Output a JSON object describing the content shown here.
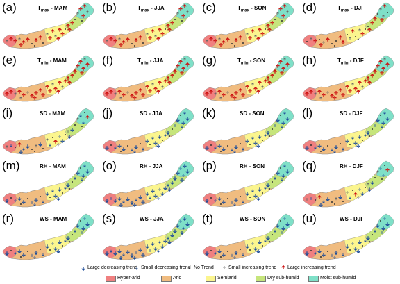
{
  "panels": [
    {
      "label": "(a)",
      "var": "T",
      "sub": "max",
      "season": "MAM",
      "pattern": "up"
    },
    {
      "label": "(b)",
      "var": "T",
      "sub": "max",
      "season": "JJA",
      "pattern": "up"
    },
    {
      "label": "(c)",
      "var": "T",
      "sub": "max",
      "season": "SON",
      "pattern": "up"
    },
    {
      "label": "(d)",
      "var": "T",
      "sub": "max",
      "season": "DJF",
      "pattern": "up-sparse"
    },
    {
      "label": "(e)",
      "var": "T",
      "sub": "min",
      "season": "MAM",
      "pattern": "up-dense"
    },
    {
      "label": "(f)",
      "var": "T",
      "sub": "min",
      "season": "JJA",
      "pattern": "up-dense"
    },
    {
      "label": "(g)",
      "var": "T",
      "sub": "min",
      "season": "SON",
      "pattern": "up-dense"
    },
    {
      "label": "(h)",
      "var": "T",
      "sub": "min",
      "season": "DJF",
      "pattern": "up-dense"
    },
    {
      "label": "(i)",
      "var": "SD",
      "sub": "",
      "season": "MAM",
      "pattern": "mixed"
    },
    {
      "label": "(j)",
      "var": "SD",
      "sub": "",
      "season": "JJA",
      "pattern": "down"
    },
    {
      "label": "(k)",
      "var": "SD",
      "sub": "",
      "season": "SON",
      "pattern": "down"
    },
    {
      "label": "(l)",
      "var": "SD",
      "sub": "",
      "season": "DJF",
      "pattern": "down"
    },
    {
      "label": "(m)",
      "var": "RH",
      "sub": "",
      "season": "MAM",
      "pattern": "down"
    },
    {
      "label": "(o)",
      "var": "RH",
      "sub": "",
      "season": "JJA",
      "pattern": "down-dense"
    },
    {
      "label": "(p)",
      "var": "RH",
      "sub": "",
      "season": "SON",
      "pattern": "down"
    },
    {
      "label": "(q)",
      "var": "RH",
      "sub": "",
      "season": "DJF",
      "pattern": "mixed"
    },
    {
      "label": "(r)",
      "var": "WS",
      "sub": "",
      "season": "MAM",
      "pattern": "down"
    },
    {
      "label": "(s)",
      "var": "WS",
      "sub": "",
      "season": "JJA",
      "pattern": "down-dense"
    },
    {
      "label": "(t)",
      "var": "WS",
      "sub": "",
      "season": "SON",
      "pattern": "down"
    },
    {
      "label": "(u)",
      "var": "WS",
      "sub": "",
      "season": "DJF",
      "pattern": "down"
    }
  ],
  "legend": {
    "trends": [
      {
        "label": "Large decreasing trend",
        "symbol": "large-down",
        "color": "#1f4e99"
      },
      {
        "label": "Small decreasing trend",
        "symbol": "small-down",
        "color": "#1f4e99"
      },
      {
        "label": "No Trend",
        "symbol": "dot",
        "color": "#333333"
      },
      {
        "label": "Small increasing trend",
        "symbol": "small-up",
        "color": "#555555"
      },
      {
        "label": "Large increasing trend",
        "symbol": "large-up",
        "color": "#cc1111"
      }
    ],
    "zones": [
      {
        "label": "Hyper-arid",
        "color": "#f08080"
      },
      {
        "label": "Arid",
        "color": "#f0bc80"
      },
      {
        "label": "Semiarid",
        "color": "#fbf58f"
      },
      {
        "label": "Dry sub-humid",
        "color": "#c6e57c"
      },
      {
        "label": "Moist sub-humid",
        "color": "#7fe0c8"
      }
    ]
  }
}
